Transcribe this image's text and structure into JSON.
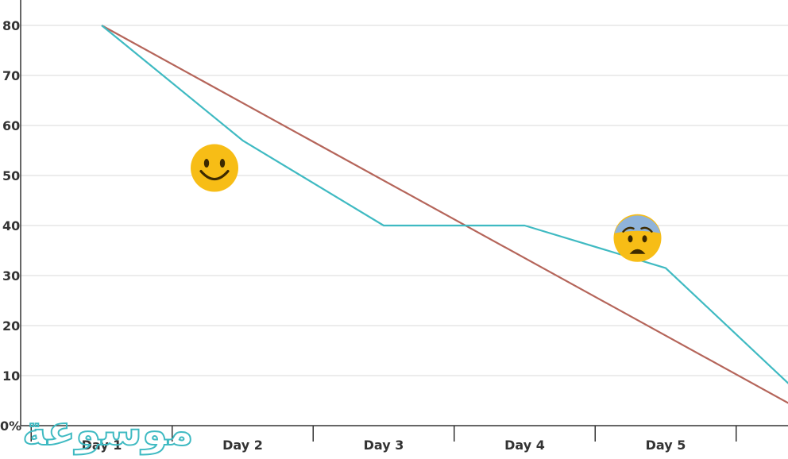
{
  "chart_data": {
    "type": "line",
    "title": "",
    "xlabel": "",
    "ylabel": "",
    "categories": [
      "Day 1",
      "Day 2",
      "Day 3",
      "Day 4",
      "Day 5"
    ],
    "y_ticks": [
      "0%",
      "10",
      "20",
      "30",
      "40",
      "50",
      "60",
      "70",
      "80"
    ],
    "ylim": [
      0,
      84
    ],
    "grid": true,
    "series": [
      {
        "color": "#b5655a",
        "x": [
          1,
          6
        ],
        "y": [
          80,
          2.5
        ]
      },
      {
        "color": "#3fbac2",
        "x": [
          1,
          2,
          3,
          4,
          5,
          6
        ],
        "y": [
          80,
          57,
          40,
          40,
          31.5,
          5
        ]
      }
    ],
    "annotations": [
      {
        "icon": "smiling-face-icon",
        "x": 1.8,
        "y": 51.5,
        "color": "#f7bd16"
      },
      {
        "icon": "anxious-face-icon",
        "x": 4.8,
        "y": 37.5,
        "color": "#f7bd16"
      }
    ]
  },
  "watermark": {
    "text": "موسوعة",
    "color": "#3fbac2"
  }
}
